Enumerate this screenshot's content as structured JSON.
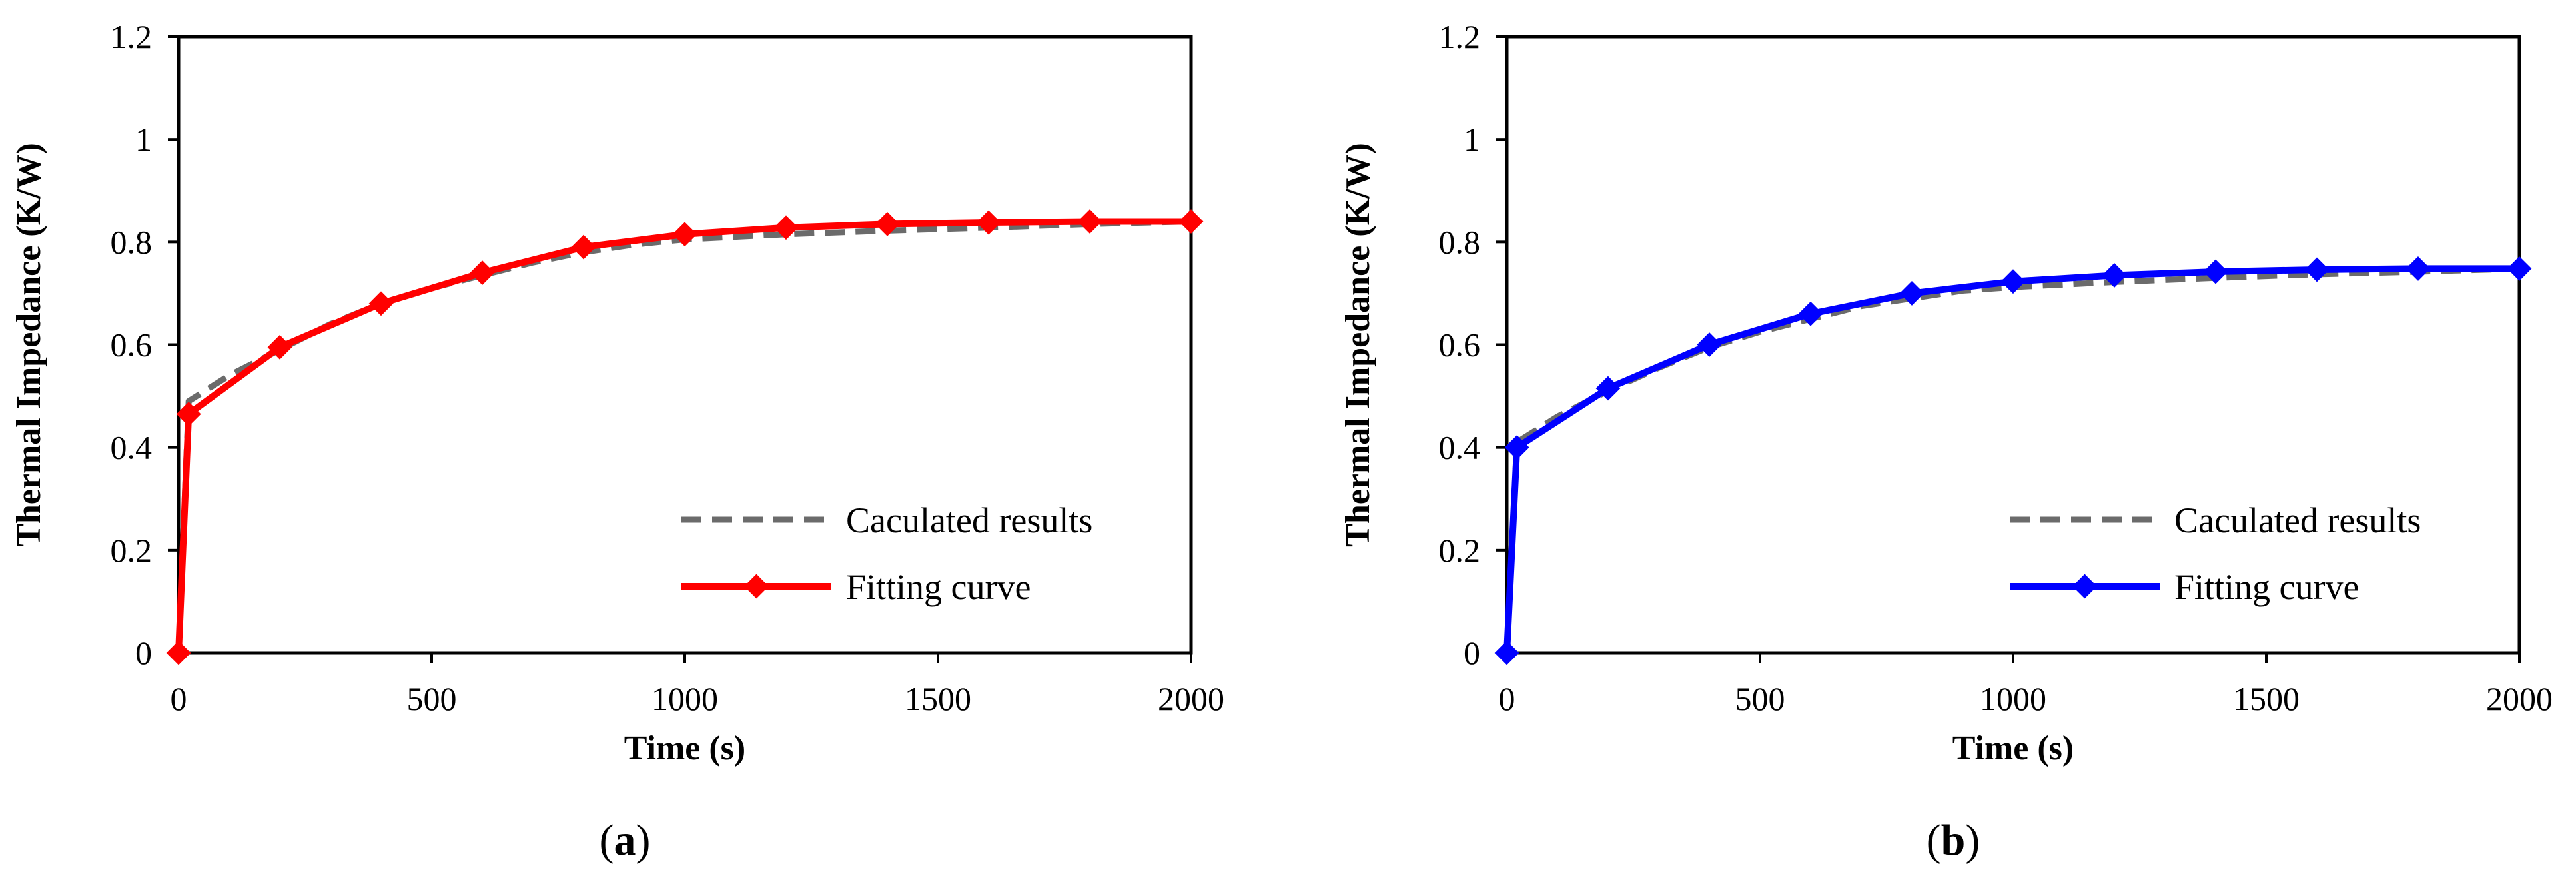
{
  "chart_data": [
    {
      "type": "line",
      "panel_label": "a",
      "title": "",
      "xlabel": "Time (s)",
      "ylabel": "Thermal Impedance (K/W)",
      "xlim": [
        0,
        2000
      ],
      "ylim": [
        0,
        1.2
      ],
      "x_ticks": [
        0,
        500,
        1000,
        1500,
        2000
      ],
      "y_ticks": [
        0,
        0.2,
        0.4,
        0.6,
        0.8,
        1,
        1.2
      ],
      "grid": false,
      "legend_position": "bottom-right",
      "series": [
        {
          "name": "Caculated results",
          "style": "dashed",
          "color": "#6b6b6b",
          "x": [
            0,
            20,
            100,
            200,
            300,
            400,
            500,
            600,
            700,
            800,
            900,
            1000,
            1200,
            1400,
            1600,
            1800,
            2000
          ],
          "y": [
            0,
            0.49,
            0.54,
            0.59,
            0.64,
            0.68,
            0.71,
            0.735,
            0.76,
            0.78,
            0.795,
            0.805,
            0.815,
            0.822,
            0.828,
            0.835,
            0.84
          ]
        },
        {
          "name": "Fitting curve",
          "style": "solid",
          "marker": "diamond",
          "color": "#ff0000",
          "x": [
            0,
            20,
            200,
            400,
            600,
            800,
            1000,
            1200,
            1400,
            1600,
            1800,
            2000
          ],
          "y": [
            0,
            0.465,
            0.595,
            0.68,
            0.74,
            0.79,
            0.815,
            0.828,
            0.835,
            0.838,
            0.84,
            0.84
          ]
        }
      ]
    },
    {
      "type": "line",
      "panel_label": "b",
      "title": "",
      "xlabel": "Time (s)",
      "ylabel": "Thermal Impedance (K/W)",
      "xlim": [
        0,
        2000
      ],
      "ylim": [
        0,
        1.2
      ],
      "x_ticks": [
        0,
        500,
        1000,
        1500,
        2000
      ],
      "y_ticks": [
        0,
        0.2,
        0.4,
        0.6,
        0.8,
        1,
        1.2
      ],
      "grid": false,
      "legend_position": "bottom-right",
      "series": [
        {
          "name": "Caculated results",
          "style": "dashed",
          "color": "#6b6b6b",
          "x": [
            0,
            20,
            100,
            200,
            300,
            400,
            500,
            600,
            700,
            800,
            900,
            1000,
            1200,
            1400,
            1600,
            1800,
            2000
          ],
          "y": [
            0,
            0.41,
            0.46,
            0.51,
            0.555,
            0.595,
            0.625,
            0.65,
            0.675,
            0.69,
            0.705,
            0.712,
            0.722,
            0.73,
            0.737,
            0.742,
            0.748
          ]
        },
        {
          "name": "Fitting curve",
          "style": "solid",
          "marker": "diamond",
          "color": "#0000ff",
          "x": [
            0,
            20,
            200,
            400,
            600,
            800,
            1000,
            1200,
            1400,
            1600,
            1800,
            2000
          ],
          "y": [
            0,
            0.4,
            0.515,
            0.6,
            0.66,
            0.7,
            0.723,
            0.735,
            0.742,
            0.746,
            0.748,
            0.748
          ]
        }
      ]
    }
  ],
  "captions": [
    {
      "open": "(",
      "letter": "a",
      "close": ")"
    },
    {
      "open": "(",
      "letter": "b",
      "close": ")"
    }
  ]
}
